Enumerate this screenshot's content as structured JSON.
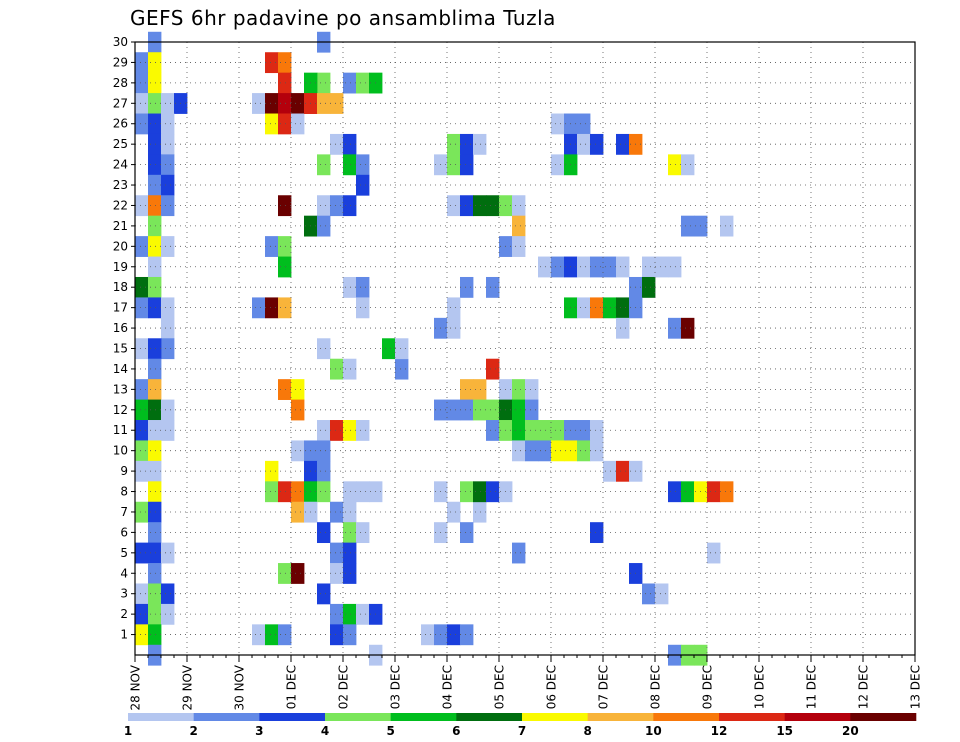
{
  "chart_data": {
    "type": "heatmap",
    "title": "GEFS 6hr padavine po ansamblima Tuzla",
    "xlabel": "",
    "ylabel": "",
    "x_tick_labels": [
      "28 NOV",
      "29 NOV",
      "30 NOV",
      "01 DEC",
      "02 DEC",
      "03 DEC",
      "04 DEC",
      "05 DEC",
      "06 DEC",
      "07 DEC",
      "08 DEC",
      "09 DEC",
      "10 DEC",
      "11 DEC",
      "12 DEC",
      "13 DEC"
    ],
    "y_tick_labels": [
      "1",
      "2",
      "3",
      "4",
      "5",
      "6",
      "7",
      "8",
      "9",
      "10",
      "11",
      "12",
      "13",
      "14",
      "15",
      "16",
      "17",
      "18",
      "19",
      "20",
      "21",
      "22",
      "23",
      "24",
      "25",
      "26",
      "27",
      "28",
      "29",
      "30"
    ],
    "x_range_steps": [
      0,
      60
    ],
    "steps_per_day": 4,
    "y_range": [
      0,
      30
    ],
    "grid": true,
    "legend": {
      "placement": "bottom",
      "labels": [
        "1",
        "2",
        "3",
        "4",
        "5",
        "6",
        "7",
        "8",
        "10",
        "12",
        "15",
        "20"
      ],
      "colors": [
        "#b4c6f0",
        "#6289e6",
        "#1a3fdc",
        "#7ae65a",
        "#00be1e",
        "#006e0f",
        "#fafa00",
        "#f8b43a",
        "#f8780a",
        "#dc2814",
        "#b4000c",
        "#6a0000"
      ]
    },
    "cells": [
      {
        "t": 1,
        "m": 30,
        "c": 1
      },
      {
        "t": 0,
        "m": 29,
        "c": 1
      },
      {
        "t": 1,
        "m": 29,
        "c": 6
      },
      {
        "t": 0,
        "m": 28,
        "c": 1
      },
      {
        "t": 1,
        "m": 28,
        "c": 6
      },
      {
        "t": 0,
        "m": 27,
        "c": 0
      },
      {
        "t": 1,
        "m": 27,
        "c": 3
      },
      {
        "t": 2,
        "m": 27,
        "c": 0
      },
      {
        "t": 3,
        "m": 27,
        "c": 2
      },
      {
        "t": 0,
        "m": 26,
        "c": 1
      },
      {
        "t": 1,
        "m": 26,
        "c": 2
      },
      {
        "t": 2,
        "m": 26,
        "c": 0
      },
      {
        "t": 1,
        "m": 25,
        "c": 2
      },
      {
        "t": 2,
        "m": 25,
        "c": 0
      },
      {
        "t": 1,
        "m": 24,
        "c": 2
      },
      {
        "t": 2,
        "m": 24,
        "c": 1
      },
      {
        "t": 1,
        "m": 23,
        "c": 1
      },
      {
        "t": 2,
        "m": 23,
        "c": 2
      },
      {
        "t": 0,
        "m": 22,
        "c": 0
      },
      {
        "t": 1,
        "m": 22,
        "c": 8
      },
      {
        "t": 2,
        "m": 22,
        "c": 1
      },
      {
        "t": 1,
        "m": 21,
        "c": 3
      },
      {
        "t": 0,
        "m": 20,
        "c": 1
      },
      {
        "t": 1,
        "m": 20,
        "c": 6
      },
      {
        "t": 2,
        "m": 20,
        "c": 0
      },
      {
        "t": 1,
        "m": 19,
        "c": 0
      },
      {
        "t": 0,
        "m": 18,
        "c": 5
      },
      {
        "t": 1,
        "m": 18,
        "c": 3
      },
      {
        "t": 0,
        "m": 17,
        "c": 1
      },
      {
        "t": 1,
        "m": 17,
        "c": 2
      },
      {
        "t": 2,
        "m": 17,
        "c": 0
      },
      {
        "t": 2,
        "m": 16,
        "c": 0
      },
      {
        "t": 2,
        "m": 15,
        "c": 1
      },
      {
        "t": 0,
        "m": 15,
        "c": 0
      },
      {
        "t": 1,
        "m": 15,
        "c": 2
      },
      {
        "t": 1,
        "m": 14,
        "c": 1
      },
      {
        "t": 0,
        "m": 13,
        "c": 1
      },
      {
        "t": 1,
        "m": 13,
        "c": 7
      },
      {
        "t": 0,
        "m": 12,
        "c": 4
      },
      {
        "t": 1,
        "m": 12,
        "c": 5
      },
      {
        "t": 2,
        "m": 12,
        "c": 0
      },
      {
        "t": 0,
        "m": 11,
        "c": 2
      },
      {
        "t": 1,
        "m": 11,
        "c": 0
      },
      {
        "t": 2,
        "m": 11,
        "c": 0
      },
      {
        "t": 0,
        "m": 10,
        "c": 3
      },
      {
        "t": 1,
        "m": 10,
        "c": 6
      },
      {
        "t": 0,
        "m": 9,
        "c": 0
      },
      {
        "t": 1,
        "m": 9,
        "c": 0
      },
      {
        "t": 1,
        "m": 8,
        "c": 6
      },
      {
        "t": 0,
        "m": 7,
        "c": 3
      },
      {
        "t": 1,
        "m": 7,
        "c": 2
      },
      {
        "t": 1,
        "m": 6,
        "c": 1
      },
      {
        "t": 0,
        "m": 5,
        "c": 2
      },
      {
        "t": 1,
        "m": 5,
        "c": 2
      },
      {
        "t": 2,
        "m": 5,
        "c": 0
      },
      {
        "t": 1,
        "m": 4,
        "c": 1
      },
      {
        "t": 0,
        "m": 3,
        "c": 0
      },
      {
        "t": 1,
        "m": 3,
        "c": 3
      },
      {
        "t": 2,
        "m": 3,
        "c": 2
      },
      {
        "t": 0,
        "m": 2,
        "c": 2
      },
      {
        "t": 1,
        "m": 2,
        "c": 3
      },
      {
        "t": 2,
        "m": 2,
        "c": 0
      },
      {
        "t": 0,
        "m": 1,
        "c": 6
      },
      {
        "t": 1,
        "m": 1,
        "c": 4
      },
      {
        "t": 1,
        "m": 0,
        "c": 1
      },
      {
        "t": 10,
        "m": 29,
        "c": 9
      },
      {
        "t": 11,
        "m": 29,
        "c": 8
      },
      {
        "t": 11,
        "m": 28,
        "c": 9
      },
      {
        "t": 9,
        "m": 27,
        "c": 0
      },
      {
        "t": 10,
        "m": 27,
        "c": 11
      },
      {
        "t": 11,
        "m": 27,
        "c": 10
      },
      {
        "t": 12,
        "m": 27,
        "c": 11
      },
      {
        "t": 13,
        "m": 27,
        "c": 9
      },
      {
        "t": 10,
        "m": 26,
        "c": 6
      },
      {
        "t": 11,
        "m": 26,
        "c": 9
      },
      {
        "t": 12,
        "m": 26,
        "c": 0
      },
      {
        "t": 11,
        "m": 22,
        "c": 11
      },
      {
        "t": 10,
        "m": 20,
        "c": 1
      },
      {
        "t": 11,
        "m": 20,
        "c": 3
      },
      {
        "t": 11,
        "m": 19,
        "c": 4
      },
      {
        "t": 9,
        "m": 17,
        "c": 1
      },
      {
        "t": 10,
        "m": 17,
        "c": 11
      },
      {
        "t": 11,
        "m": 17,
        "c": 7
      },
      {
        "t": 11,
        "m": 13,
        "c": 8
      },
      {
        "t": 12,
        "m": 13,
        "c": 6
      },
      {
        "t": 12,
        "m": 12,
        "c": 8
      },
      {
        "t": 12,
        "m": 10,
        "c": 0
      },
      {
        "t": 13,
        "m": 10,
        "c": 1
      },
      {
        "t": 10,
        "m": 9,
        "c": 6
      },
      {
        "t": 10,
        "m": 8,
        "c": 3
      },
      {
        "t": 11,
        "m": 8,
        "c": 9
      },
      {
        "t": 12,
        "m": 8,
        "c": 8
      },
      {
        "t": 12,
        "m": 7,
        "c": 7
      },
      {
        "t": 11,
        "m": 4,
        "c": 3
      },
      {
        "t": 12,
        "m": 4,
        "c": 11
      },
      {
        "t": 9,
        "m": 1,
        "c": 0
      },
      {
        "t": 10,
        "m": 1,
        "c": 4
      },
      {
        "t": 11,
        "m": 1,
        "c": 1
      },
      {
        "t": 14,
        "m": 30,
        "c": 1
      },
      {
        "t": 14,
        "m": 28,
        "c": 3
      },
      {
        "t": 13,
        "m": 28,
        "c": 4
      },
      {
        "t": 13,
        "m": 27,
        "c": 9
      },
      {
        "t": 14,
        "m": 27,
        "c": 7
      },
      {
        "t": 15,
        "m": 27,
        "c": 7
      },
      {
        "t": 16,
        "m": 28,
        "c": 1
      },
      {
        "t": 17,
        "m": 28,
        "c": 3
      },
      {
        "t": 18,
        "m": 28,
        "c": 4
      },
      {
        "t": 15,
        "m": 25,
        "c": 0
      },
      {
        "t": 16,
        "m": 25,
        "c": 2
      },
      {
        "t": 14,
        "m": 24,
        "c": 3
      },
      {
        "t": 16,
        "m": 24,
        "c": 4
      },
      {
        "t": 17,
        "m": 24,
        "c": 1
      },
      {
        "t": 17,
        "m": 23,
        "c": 2
      },
      {
        "t": 14,
        "m": 22,
        "c": 0
      },
      {
        "t": 15,
        "m": 22,
        "c": 1
      },
      {
        "t": 16,
        "m": 22,
        "c": 2
      },
      {
        "t": 13,
        "m": 21,
        "c": 5
      },
      {
        "t": 14,
        "m": 21,
        "c": 1
      },
      {
        "t": 16,
        "m": 18,
        "c": 0
      },
      {
        "t": 17,
        "m": 18,
        "c": 1
      },
      {
        "t": 17,
        "m": 17,
        "c": 0
      },
      {
        "t": 14,
        "m": 15,
        "c": 0
      },
      {
        "t": 15,
        "m": 14,
        "c": 3
      },
      {
        "t": 16,
        "m": 14,
        "c": 0
      },
      {
        "t": 14,
        "m": 11,
        "c": 0
      },
      {
        "t": 15,
        "m": 11,
        "c": 9
      },
      {
        "t": 16,
        "m": 11,
        "c": 6
      },
      {
        "t": 17,
        "m": 11,
        "c": 0
      },
      {
        "t": 14,
        "m": 10,
        "c": 1
      },
      {
        "t": 13,
        "m": 9,
        "c": 2
      },
      {
        "t": 14,
        "m": 9,
        "c": 1
      },
      {
        "t": 13,
        "m": 8,
        "c": 4
      },
      {
        "t": 14,
        "m": 8,
        "c": 3
      },
      {
        "t": 16,
        "m": 8,
        "c": 0
      },
      {
        "t": 17,
        "m": 8,
        "c": 0
      },
      {
        "t": 18,
        "m": 8,
        "c": 0
      },
      {
        "t": 13,
        "m": 7,
        "c": 0
      },
      {
        "t": 15,
        "m": 7,
        "c": 1
      },
      {
        "t": 16,
        "m": 7,
        "c": 0
      },
      {
        "t": 14,
        "m": 6,
        "c": 2
      },
      {
        "t": 16,
        "m": 6,
        "c": 3
      },
      {
        "t": 17,
        "m": 6,
        "c": 0
      },
      {
        "t": 15,
        "m": 5,
        "c": 1
      },
      {
        "t": 16,
        "m": 5,
        "c": 2
      },
      {
        "t": 15,
        "m": 4,
        "c": 0
      },
      {
        "t": 16,
        "m": 4,
        "c": 2
      },
      {
        "t": 14,
        "m": 3,
        "c": 2
      },
      {
        "t": 15,
        "m": 2,
        "c": 1
      },
      {
        "t": 16,
        "m": 2,
        "c": 4
      },
      {
        "t": 17,
        "m": 2,
        "c": 0
      },
      {
        "t": 18,
        "m": 2,
        "c": 2
      },
      {
        "t": 15,
        "m": 1,
        "c": 2
      },
      {
        "t": 16,
        "m": 1,
        "c": 1
      },
      {
        "t": 18,
        "m": 0,
        "c": 0
      },
      {
        "t": 20,
        "m": 14,
        "c": 1
      },
      {
        "t": 19,
        "m": 15,
        "c": 4
      },
      {
        "t": 20,
        "m": 15,
        "c": 0
      },
      {
        "t": 24,
        "m": 7,
        "c": 0
      },
      {
        "t": 26,
        "m": 7,
        "c": 0
      },
      {
        "t": 23,
        "m": 24,
        "c": 0
      },
      {
        "t": 24,
        "m": 24,
        "c": 3
      },
      {
        "t": 25,
        "m": 24,
        "c": 2
      },
      {
        "t": 24,
        "m": 25,
        "c": 3
      },
      {
        "t": 25,
        "m": 25,
        "c": 2
      },
      {
        "t": 26,
        "m": 25,
        "c": 0
      },
      {
        "t": 24,
        "m": 22,
        "c": 0
      },
      {
        "t": 25,
        "m": 22,
        "c": 2
      },
      {
        "t": 26,
        "m": 22,
        "c": 5
      },
      {
        "t": 27,
        "m": 22,
        "c": 5
      },
      {
        "t": 28,
        "m": 22,
        "c": 3
      },
      {
        "t": 29,
        "m": 22,
        "c": 0
      },
      {
        "t": 29,
        "m": 21,
        "c": 7
      },
      {
        "t": 28,
        "m": 20,
        "c": 1
      },
      {
        "t": 29,
        "m": 20,
        "c": 0
      },
      {
        "t": 25,
        "m": 18,
        "c": 1
      },
      {
        "t": 27,
        "m": 18,
        "c": 1
      },
      {
        "t": 24,
        "m": 17,
        "c": 0
      },
      {
        "t": 23,
        "m": 16,
        "c": 1
      },
      {
        "t": 24,
        "m": 16,
        "c": 0
      },
      {
        "t": 27,
        "m": 14,
        "c": 9
      },
      {
        "t": 25,
        "m": 13,
        "c": 7
      },
      {
        "t": 26,
        "m": 13,
        "c": 7
      },
      {
        "t": 28,
        "m": 13,
        "c": 0
      },
      {
        "t": 29,
        "m": 13,
        "c": 3
      },
      {
        "t": 30,
        "m": 13,
        "c": 0
      },
      {
        "t": 23,
        "m": 12,
        "c": 1
      },
      {
        "t": 24,
        "m": 12,
        "c": 1
      },
      {
        "t": 25,
        "m": 12,
        "c": 1
      },
      {
        "t": 26,
        "m": 12,
        "c": 3
      },
      {
        "t": 27,
        "m": 12,
        "c": 3
      },
      {
        "t": 28,
        "m": 12,
        "c": 5
      },
      {
        "t": 29,
        "m": 12,
        "c": 4
      },
      {
        "t": 30,
        "m": 12,
        "c": 1
      },
      {
        "t": 27,
        "m": 11,
        "c": 1
      },
      {
        "t": 28,
        "m": 11,
        "c": 3
      },
      {
        "t": 29,
        "m": 11,
        "c": 4
      },
      {
        "t": 30,
        "m": 11,
        "c": 3
      },
      {
        "t": 31,
        "m": 11,
        "c": 3
      },
      {
        "t": 32,
        "m": 11,
        "c": 3
      },
      {
        "t": 33,
        "m": 11,
        "c": 1
      },
      {
        "t": 34,
        "m": 11,
        "c": 1
      },
      {
        "t": 35,
        "m": 11,
        "c": 0
      },
      {
        "t": 29,
        "m": 10,
        "c": 0
      },
      {
        "t": 30,
        "m": 10,
        "c": 1
      },
      {
        "t": 31,
        "m": 10,
        "c": 1
      },
      {
        "t": 32,
        "m": 10,
        "c": 6
      },
      {
        "t": 33,
        "m": 10,
        "c": 6
      },
      {
        "t": 34,
        "m": 10,
        "c": 3
      },
      {
        "t": 35,
        "m": 10,
        "c": 0
      },
      {
        "t": 23,
        "m": 8,
        "c": 0
      },
      {
        "t": 25,
        "m": 8,
        "c": 3
      },
      {
        "t": 26,
        "m": 8,
        "c": 5
      },
      {
        "t": 27,
        "m": 8,
        "c": 2
      },
      {
        "t": 28,
        "m": 8,
        "c": 0
      },
      {
        "t": 23,
        "m": 6,
        "c": 0
      },
      {
        "t": 25,
        "m": 6,
        "c": 1
      },
      {
        "t": 22,
        "m": 1,
        "c": 0
      },
      {
        "t": 23,
        "m": 1,
        "c": 1
      },
      {
        "t": 24,
        "m": 1,
        "c": 2
      },
      {
        "t": 25,
        "m": 1,
        "c": 1
      },
      {
        "t": 29,
        "m": 5,
        "c": 1
      },
      {
        "t": 32,
        "m": 26,
        "c": 0
      },
      {
        "t": 33,
        "m": 26,
        "c": 1
      },
      {
        "t": 34,
        "m": 26,
        "c": 1
      },
      {
        "t": 33,
        "m": 25,
        "c": 2
      },
      {
        "t": 34,
        "m": 25,
        "c": 0
      },
      {
        "t": 35,
        "m": 25,
        "c": 2
      },
      {
        "t": 37,
        "m": 25,
        "c": 2
      },
      {
        "t": 38,
        "m": 25,
        "c": 8
      },
      {
        "t": 32,
        "m": 24,
        "c": 0
      },
      {
        "t": 33,
        "m": 24,
        "c": 4
      },
      {
        "t": 41,
        "m": 24,
        "c": 6
      },
      {
        "t": 42,
        "m": 24,
        "c": 0
      },
      {
        "t": 42,
        "m": 21,
        "c": 1
      },
      {
        "t": 43,
        "m": 21,
        "c": 1
      },
      {
        "t": 45,
        "m": 21,
        "c": 0
      },
      {
        "t": 31,
        "m": 19,
        "c": 0
      },
      {
        "t": 32,
        "m": 19,
        "c": 1
      },
      {
        "t": 33,
        "m": 19,
        "c": 2
      },
      {
        "t": 34,
        "m": 19,
        "c": 0
      },
      {
        "t": 35,
        "m": 19,
        "c": 1
      },
      {
        "t": 36,
        "m": 19,
        "c": 1
      },
      {
        "t": 37,
        "m": 19,
        "c": 0
      },
      {
        "t": 39,
        "m": 19,
        "c": 0
      },
      {
        "t": 40,
        "m": 19,
        "c": 0
      },
      {
        "t": 41,
        "m": 19,
        "c": 0
      },
      {
        "t": 38,
        "m": 18,
        "c": 1
      },
      {
        "t": 39,
        "m": 18,
        "c": 5
      },
      {
        "t": 33,
        "m": 17,
        "c": 4
      },
      {
        "t": 34,
        "m": 17,
        "c": 0
      },
      {
        "t": 35,
        "m": 17,
        "c": 8
      },
      {
        "t": 36,
        "m": 17,
        "c": 4
      },
      {
        "t": 37,
        "m": 17,
        "c": 5
      },
      {
        "t": 38,
        "m": 17,
        "c": 1
      },
      {
        "t": 37,
        "m": 16,
        "c": 0
      },
      {
        "t": 41,
        "m": 16,
        "c": 1
      },
      {
        "t": 42,
        "m": 16,
        "c": 11
      },
      {
        "t": 36,
        "m": 9,
        "c": 0
      },
      {
        "t": 37,
        "m": 9,
        "c": 9
      },
      {
        "t": 38,
        "m": 9,
        "c": 0
      },
      {
        "t": 41,
        "m": 8,
        "c": 2
      },
      {
        "t": 42,
        "m": 8,
        "c": 4
      },
      {
        "t": 43,
        "m": 8,
        "c": 6
      },
      {
        "t": 44,
        "m": 8,
        "c": 9
      },
      {
        "t": 45,
        "m": 8,
        "c": 8
      },
      {
        "t": 35,
        "m": 6,
        "c": 2
      },
      {
        "t": 38,
        "m": 4,
        "c": 2
      },
      {
        "t": 39,
        "m": 3,
        "c": 1
      },
      {
        "t": 40,
        "m": 3,
        "c": 0
      },
      {
        "t": 41,
        "m": 0,
        "c": 1
      },
      {
        "t": 42,
        "m": 0,
        "c": 3
      },
      {
        "t": 43,
        "m": 0,
        "c": 3
      },
      {
        "t": 44,
        "m": 5,
        "c": 0
      }
    ]
  }
}
